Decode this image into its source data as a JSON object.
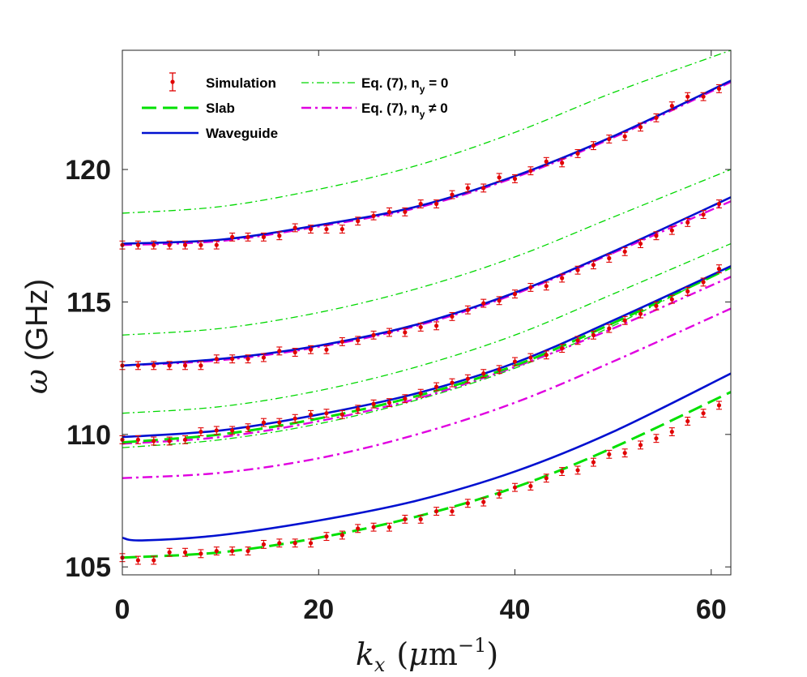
{
  "chart_data": {
    "type": "line",
    "xlabel": {
      "var": "k",
      "sub": "x",
      "unit_pre": "(",
      "unit_mu": "μ",
      "unit_m": "m",
      "unit_sup": "−1",
      "unit_post": ")"
    },
    "ylabel": {
      "var": "ω",
      "unit": "(GHz)"
    },
    "xlim": [
      0,
      62
    ],
    "ylim": [
      104.7,
      124.5
    ],
    "xticks": [
      0,
      20,
      40,
      60
    ],
    "xtick_labels": [
      "0",
      "20",
      "40",
      "60"
    ],
    "yticks": [
      105,
      110,
      115,
      120
    ],
    "ytick_labels": [
      "105",
      "110",
      "115",
      "120"
    ],
    "legend": {
      "position": "top-left",
      "items": [
        {
          "key": "simulation",
          "label": "Simulation"
        },
        {
          "key": "slab",
          "label": "Slab"
        },
        {
          "key": "waveguide",
          "label": "Waveguide"
        },
        {
          "key": "eq7_ny0",
          "label": "Eq. (7), n",
          "sub": "y",
          "suffix": " = 0"
        },
        {
          "key": "eq7_ny_ne0",
          "label": "Eq. (7), n",
          "sub": "y",
          "suffix": " ≠ 0"
        }
      ]
    },
    "colors": {
      "simulation": "#e00000",
      "slab": "#00e000",
      "waveguide": "#0010d0",
      "eq7_ny0": "#00d800",
      "eq7_ny_ne0": "#e000e0"
    },
    "series": [
      {
        "name": "Waveguide",
        "style": "waveguide",
        "x": [
          0,
          2,
          10,
          20,
          30,
          40,
          50,
          62
        ],
        "y": [
          106.1,
          106.0,
          106.2,
          106.75,
          107.5,
          108.6,
          110.1,
          112.3
        ]
      },
      {
        "name": "Waveguide",
        "style": "waveguide",
        "x": [
          0,
          10,
          20,
          30,
          40,
          50,
          62
        ],
        "y": [
          109.9,
          110.15,
          110.75,
          111.55,
          112.7,
          114.3,
          116.35
        ]
      },
      {
        "name": "Waveguide",
        "style": "waveguide",
        "x": [
          0,
          10,
          20,
          30,
          40,
          50,
          62
        ],
        "y": [
          112.6,
          112.85,
          113.35,
          114.15,
          115.35,
          116.9,
          118.95
        ]
      },
      {
        "name": "Waveguide",
        "style": "waveguide",
        "x": [
          0,
          10,
          20,
          30,
          40,
          50,
          62
        ],
        "y": [
          117.2,
          117.35,
          117.9,
          118.6,
          119.75,
          121.25,
          123.35
        ]
      },
      {
        "name": "Slab",
        "style": "slab",
        "x": [
          0,
          10,
          20,
          30,
          40,
          50,
          62
        ],
        "y": [
          105.35,
          105.55,
          106.1,
          106.9,
          108.0,
          109.5,
          111.6
        ]
      },
      {
        "name": "Slab",
        "style": "slab",
        "x": [
          0,
          10,
          20,
          30,
          40,
          50,
          62
        ],
        "y": [
          109.7,
          110.0,
          110.6,
          111.45,
          112.6,
          114.2,
          116.3
        ]
      },
      {
        "name": "Eq. (7), n_y = 0",
        "style": "eq7_ny0",
        "x": [
          0,
          10,
          20,
          30,
          40,
          50,
          62
        ],
        "y": [
          109.5,
          109.8,
          110.4,
          111.3,
          112.5,
          114.1,
          116.35
        ]
      },
      {
        "name": "Eq. (7), n_y = 0",
        "style": "eq7_ny0",
        "x": [
          0,
          10,
          20,
          30,
          40,
          50,
          62
        ],
        "y": [
          110.8,
          111.05,
          111.65,
          112.55,
          113.75,
          115.3,
          117.2
        ]
      },
      {
        "name": "Eq. (7), n_y = 0",
        "style": "eq7_ny0",
        "x": [
          0,
          10,
          20,
          30,
          40,
          50,
          62
        ],
        "y": [
          113.75,
          114.0,
          114.6,
          115.5,
          116.7,
          118.2,
          120.0
        ]
      },
      {
        "name": "Eq. (7), n_y = 0",
        "style": "eq7_ny0",
        "x": [
          0,
          10,
          20,
          30,
          40,
          50,
          62
        ],
        "y": [
          118.35,
          118.6,
          119.25,
          120.15,
          121.4,
          122.9,
          124.5
        ]
      },
      {
        "name": "Eq. (7), n_y ≠ 0",
        "style": "eq7_ny_ne0",
        "x": [
          0,
          10,
          20,
          30,
          40,
          50,
          62
        ],
        "y": [
          108.35,
          108.55,
          109.1,
          110.0,
          111.2,
          112.75,
          114.75
        ]
      },
      {
        "name": "Eq. (7), n_y ≠ 0",
        "style": "eq7_ny_ne0",
        "x": [
          0,
          10,
          20,
          30,
          40,
          50,
          62
        ],
        "y": [
          109.65,
          109.9,
          110.5,
          111.35,
          112.55,
          114.0,
          115.95
        ]
      },
      {
        "name": "Eq. (7), n_y ≠ 0",
        "style": "eq7_ny_ne0",
        "x": [
          0,
          10,
          20,
          30,
          40,
          50,
          62
        ],
        "y": [
          112.6,
          112.8,
          113.3,
          114.1,
          115.3,
          116.85,
          118.8
        ]
      },
      {
        "name": "Eq. (7), n_y ≠ 0",
        "style": "eq7_ny_ne0",
        "x": [
          0,
          10,
          20,
          30,
          40,
          50,
          62
        ],
        "y": [
          117.15,
          117.3,
          117.85,
          118.55,
          119.7,
          121.2,
          123.3
        ]
      }
    ],
    "simulation": {
      "name": "Simulation",
      "error": 0.15,
      "branches": [
        {
          "x": [
            0,
            1.6,
            3.2,
            4.8,
            6.4,
            8.0,
            9.6,
            11.2,
            12.8,
            14.4,
            16.0,
            17.6,
            19.2,
            20.8,
            22.4,
            24.0,
            25.6,
            27.2,
            28.8,
            30.4,
            32.0,
            33.6,
            35.2,
            36.8,
            38.4,
            40.0,
            41.6,
            43.2,
            44.8,
            46.4,
            48.0,
            49.6,
            51.2,
            52.8,
            54.4,
            56.0,
            57.6,
            59.2,
            60.8
          ],
          "y": [
            105.35,
            105.25,
            105.25,
            105.55,
            105.55,
            105.5,
            105.6,
            105.6,
            105.6,
            105.85,
            105.9,
            105.9,
            105.9,
            106.15,
            106.2,
            106.45,
            106.5,
            106.5,
            106.8,
            106.8,
            107.1,
            107.1,
            107.4,
            107.45,
            107.75,
            108.0,
            108.05,
            108.35,
            108.6,
            108.65,
            108.95,
            109.25,
            109.3,
            109.6,
            109.85,
            110.1,
            110.5,
            110.8,
            111.1
          ]
        },
        {
          "x": [
            0,
            1.6,
            3.2,
            4.8,
            6.4,
            8.0,
            9.6,
            11.2,
            12.8,
            14.4,
            16.0,
            17.6,
            19.2,
            20.8,
            22.4,
            24.0,
            25.6,
            27.2,
            28.8,
            30.4,
            32.0,
            33.6,
            35.2,
            36.8,
            38.4,
            40.0,
            41.6,
            43.2,
            44.8,
            46.4,
            48.0,
            49.6,
            51.2,
            52.8,
            54.4,
            56.0,
            57.6,
            59.2,
            60.8
          ],
          "y": [
            109.8,
            109.8,
            109.75,
            109.75,
            109.8,
            110.1,
            110.15,
            110.15,
            110.25,
            110.45,
            110.45,
            110.6,
            110.75,
            110.8,
            110.75,
            110.95,
            111.15,
            111.2,
            111.35,
            111.55,
            111.8,
            111.95,
            112.1,
            112.3,
            112.45,
            112.75,
            112.9,
            113.0,
            113.25,
            113.55,
            113.75,
            114.0,
            114.3,
            114.55,
            114.85,
            115.1,
            115.4,
            115.75,
            116.25
          ]
        },
        {
          "x": [
            0,
            1.6,
            3.2,
            4.8,
            6.4,
            8.0,
            9.6,
            11.2,
            12.8,
            14.4,
            16.0,
            17.6,
            19.2,
            20.8,
            22.4,
            24.0,
            25.6,
            27.2,
            28.8,
            30.4,
            32.0,
            33.6,
            35.2,
            36.8,
            38.4,
            40.0,
            41.6,
            43.2,
            44.8,
            46.4,
            48.0,
            49.6,
            51.2,
            52.8,
            54.4,
            56.0,
            57.6,
            59.2,
            60.8
          ],
          "y": [
            112.6,
            112.6,
            112.6,
            112.6,
            112.6,
            112.6,
            112.85,
            112.85,
            112.85,
            112.9,
            113.15,
            113.1,
            113.2,
            113.2,
            113.5,
            113.55,
            113.75,
            113.85,
            113.85,
            114.05,
            114.1,
            114.45,
            114.7,
            114.95,
            115.05,
            115.3,
            115.55,
            115.6,
            115.9,
            116.2,
            116.4,
            116.65,
            116.9,
            117.2,
            117.5,
            117.7,
            118.0,
            118.3,
            118.7
          ]
        },
        {
          "x": [
            0,
            1.6,
            3.2,
            4.8,
            6.4,
            8.0,
            9.6,
            11.2,
            12.8,
            14.4,
            16.0,
            17.6,
            19.2,
            20.8,
            22.4,
            24.0,
            25.6,
            27.2,
            28.8,
            30.4,
            32.0,
            33.6,
            35.2,
            36.8,
            38.4,
            40.0,
            41.6,
            43.2,
            44.8,
            46.4,
            48.0,
            49.6,
            51.2,
            52.8,
            54.4,
            56.0,
            57.6,
            59.2,
            60.8
          ],
          "y": [
            117.15,
            117.15,
            117.15,
            117.15,
            117.15,
            117.15,
            117.15,
            117.45,
            117.45,
            117.45,
            117.5,
            117.8,
            117.75,
            117.75,
            117.75,
            118.05,
            118.25,
            118.4,
            118.4,
            118.7,
            118.7,
            119.05,
            119.3,
            119.3,
            119.7,
            119.65,
            119.95,
            120.3,
            120.25,
            120.6,
            120.9,
            121.15,
            121.25,
            121.6,
            121.95,
            122.4,
            122.75,
            122.75,
            123.05
          ]
        }
      ]
    }
  }
}
